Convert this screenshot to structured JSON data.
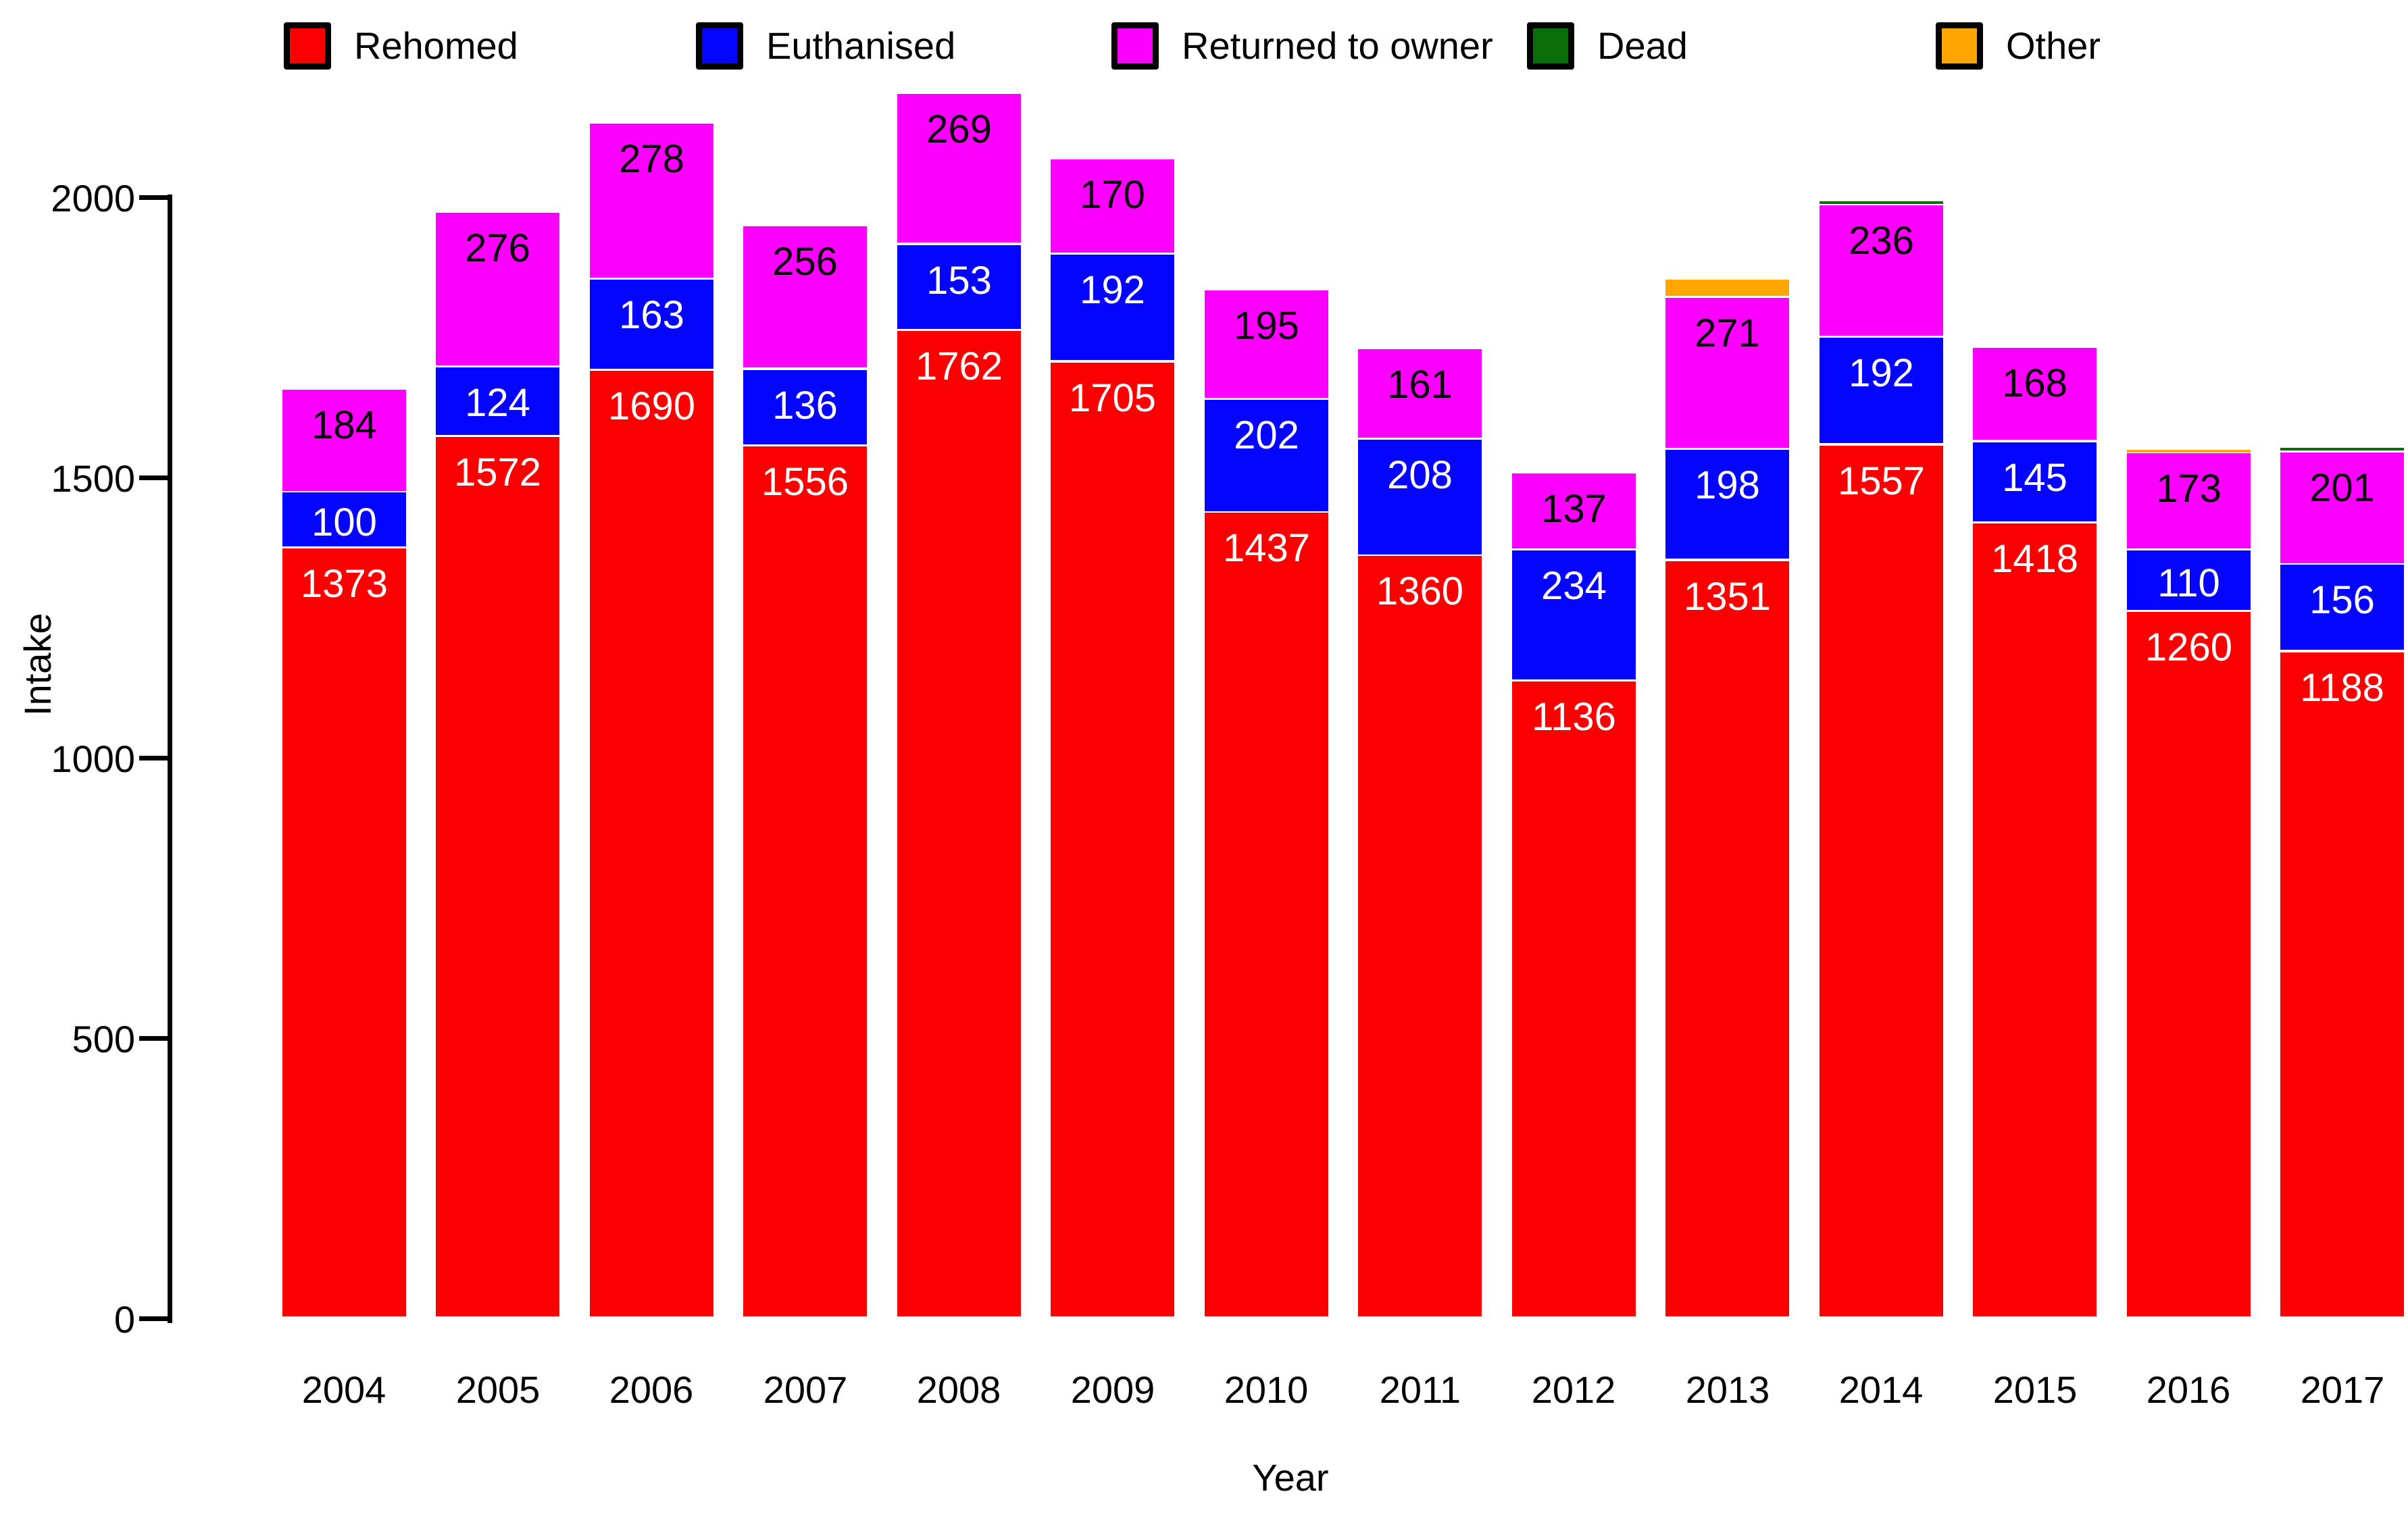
{
  "chart_data": {
    "type": "bar",
    "subtype": "stacked-vertical",
    "title": "",
    "xlabel": "Year",
    "ylabel": "Intake",
    "ylim": [
      0,
      2200
    ],
    "yticks": [
      0,
      500,
      1000,
      1500,
      2000
    ],
    "grid": false,
    "legend_position": "top",
    "categories": [
      "2004",
      "2005",
      "2006",
      "2007",
      "2008",
      "2009",
      "2010",
      "2011",
      "2012",
      "2013",
      "2014",
      "2015",
      "2016",
      "2017"
    ],
    "series": [
      {
        "name": "Rehomed",
        "color": "#fb0000",
        "label_color": "#ffffff",
        "labels_shown": true,
        "values": [
          1373,
          1572,
          1690,
          1556,
          1762,
          1705,
          1437,
          1360,
          1136,
          1351,
          1557,
          1418,
          1260,
          1188
        ]
      },
      {
        "name": "Euthanised",
        "color": "#0404ff",
        "label_color": "#ffffff",
        "labels_shown": true,
        "values": [
          100,
          124,
          163,
          136,
          153,
          192,
          202,
          208,
          234,
          198,
          192,
          145,
          110,
          156
        ]
      },
      {
        "name": "Returned to owner",
        "color": "#fc00ff",
        "label_color": "#000000",
        "labels_shown": true,
        "values": [
          184,
          276,
          278,
          256,
          269,
          170,
          195,
          161,
          137,
          271,
          236,
          168,
          173,
          201
        ]
      },
      {
        "name": "Dead",
        "color": "#0a6e0a",
        "label_color": "#ffffff",
        "labels_shown": false,
        "values": [
          0,
          0,
          0,
          0,
          0,
          0,
          0,
          0,
          0,
          0,
          8,
          0,
          0,
          8
        ]
      },
      {
        "name": "Other",
        "color": "#ffa500",
        "label_color": "#000000",
        "labels_shown": false,
        "values": [
          0,
          0,
          0,
          0,
          0,
          0,
          0,
          0,
          0,
          33,
          0,
          0,
          6,
          0
        ]
      }
    ]
  }
}
